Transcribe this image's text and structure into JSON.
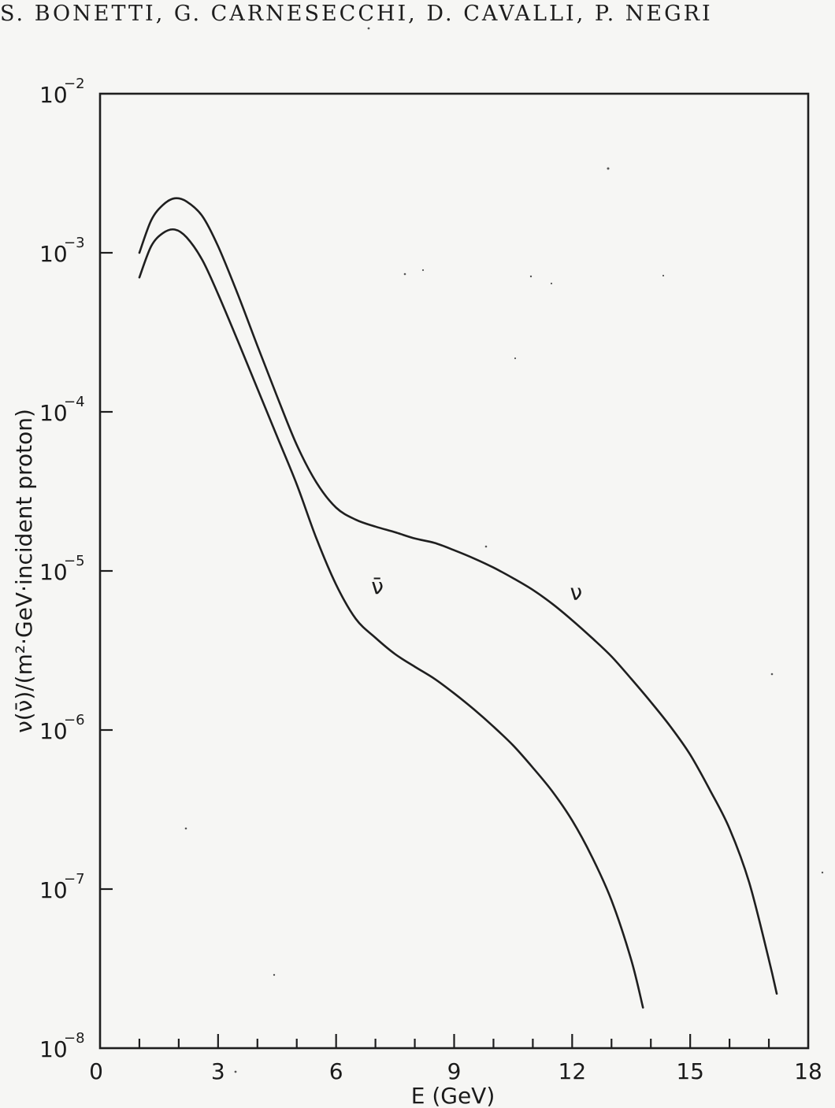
{
  "header": {
    "authors": "S. BONETTI, G. CARNESECCHI, D. CAVALLI, P. NEGRI"
  },
  "chart_data": {
    "type": "line",
    "title": "",
    "xlabel": "E (GeV)",
    "ylabel": "ν(ν̄)/(m²·GeV·incident proton)",
    "xlim": [
      0,
      18
    ],
    "ylim": [
      1e-08,
      0.01
    ],
    "yscale": "log",
    "grid": false,
    "x_ticks": [
      "0",
      "3",
      "6",
      "9",
      "12",
      "15",
      "18"
    ],
    "y_ticks": [
      {
        "base": "10",
        "exp": "−8",
        "value": 1e-08
      },
      {
        "base": "10",
        "exp": "−7",
        "value": 1e-07
      },
      {
        "base": "10",
        "exp": "−6",
        "value": 1e-06
      },
      {
        "base": "10",
        "exp": "−5",
        "value": 1e-05
      },
      {
        "base": "10",
        "exp": "−4",
        "value": 0.0001
      },
      {
        "base": "10",
        "exp": "−3",
        "value": 0.001
      },
      {
        "base": "10",
        "exp": "−2",
        "value": 0.01
      }
    ],
    "series": [
      {
        "name": "ν",
        "label_at": {
          "x": 12.1,
          "y": 6.6e-06
        },
        "points": [
          [
            1.0,
            0.001
          ],
          [
            1.3,
            0.0016
          ],
          [
            1.6,
            0.002
          ],
          [
            1.9,
            0.0022
          ],
          [
            2.2,
            0.0021
          ],
          [
            2.6,
            0.0017
          ],
          [
            3.0,
            0.0011
          ],
          [
            3.5,
            0.00055
          ],
          [
            4.0,
            0.00026
          ],
          [
            4.5,
            0.000125
          ],
          [
            5.0,
            6.2e-05
          ],
          [
            5.5,
            3.6e-05
          ],
          [
            6.0,
            2.5e-05
          ],
          [
            6.5,
            2.1e-05
          ],
          [
            7.0,
            1.9e-05
          ],
          [
            7.5,
            1.75e-05
          ],
          [
            8.0,
            1.6e-05
          ],
          [
            8.5,
            1.5e-05
          ],
          [
            9.0,
            1.35e-05
          ],
          [
            9.5,
            1.2e-05
          ],
          [
            10.0,
            1.05e-05
          ],
          [
            10.5,
            9e-06
          ],
          [
            11.0,
            7.6e-06
          ],
          [
            11.5,
            6.2e-06
          ],
          [
            12.0,
            4.9e-06
          ],
          [
            12.5,
            3.8e-06
          ],
          [
            13.0,
            2.9e-06
          ],
          [
            13.5,
            2.1e-06
          ],
          [
            14.0,
            1.5e-06
          ],
          [
            14.5,
            1.05e-06
          ],
          [
            15.0,
            7e-07
          ],
          [
            15.5,
            4.2e-07
          ],
          [
            16.0,
            2.4e-07
          ],
          [
            16.5,
            1.1e-07
          ],
          [
            17.0,
            3.6e-08
          ],
          [
            17.2,
            2.2e-08
          ]
        ]
      },
      {
        "name": "ν̄",
        "label_at": {
          "x": 7.05,
          "y": 7.2e-06
        },
        "points": [
          [
            1.0,
            0.0007
          ],
          [
            1.3,
            0.0011
          ],
          [
            1.6,
            0.00133
          ],
          [
            1.9,
            0.0014
          ],
          [
            2.2,
            0.00125
          ],
          [
            2.6,
            0.0009
          ],
          [
            3.0,
            0.00055
          ],
          [
            3.5,
            0.00028
          ],
          [
            4.0,
            0.00014
          ],
          [
            4.5,
            7e-05
          ],
          [
            5.0,
            3.5e-05
          ],
          [
            5.5,
            1.6e-05
          ],
          [
            6.0,
            8.2e-06
          ],
          [
            6.5,
            5e-06
          ],
          [
            7.0,
            3.8e-06
          ],
          [
            7.5,
            3e-06
          ],
          [
            8.0,
            2.5e-06
          ],
          [
            8.5,
            2.1e-06
          ],
          [
            9.0,
            1.7e-06
          ],
          [
            9.5,
            1.35e-06
          ],
          [
            10.0,
            1.05e-06
          ],
          [
            10.5,
            8e-07
          ],
          [
            11.0,
            5.8e-07
          ],
          [
            11.5,
            4.1e-07
          ],
          [
            12.0,
            2.7e-07
          ],
          [
            12.5,
            1.6e-07
          ],
          [
            13.0,
            8.5e-08
          ],
          [
            13.5,
            3.6e-08
          ],
          [
            13.8,
            1.8e-08
          ]
        ]
      }
    ]
  }
}
